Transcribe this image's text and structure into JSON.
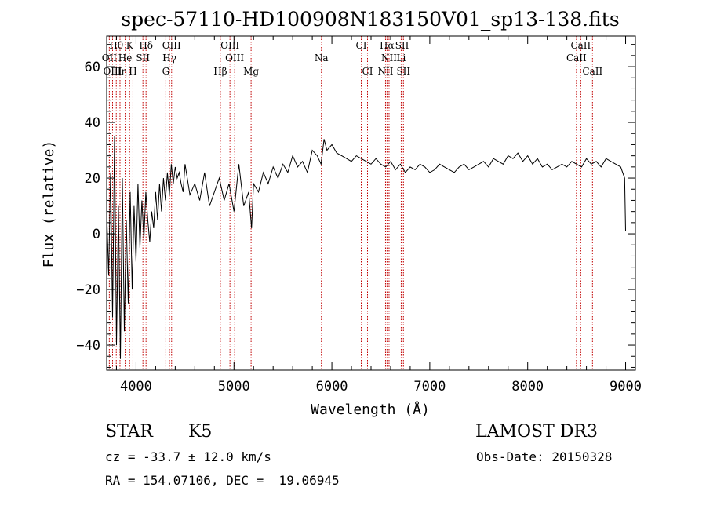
{
  "chart_data": {
    "type": "line",
    "title": "spec-57110-HD100908N183150V01_sp13-138.fits",
    "xlabel": "Wavelength (Å)",
    "ylabel": "Flux (relative)",
    "xlim": [
      3700,
      9100
    ],
    "ylim": [
      -49,
      71
    ],
    "x_ticks": [
      4000,
      5000,
      6000,
      7000,
      8000,
      9000
    ],
    "y_ticks": [
      -40,
      -20,
      0,
      20,
      40,
      60
    ],
    "series": [
      {
        "name": "flux",
        "x": [
          3700,
          3720,
          3740,
          3760,
          3780,
          3800,
          3820,
          3840,
          3860,
          3880,
          3900,
          3920,
          3940,
          3960,
          3980,
          4000,
          4020,
          4040,
          4060,
          4080,
          4100,
          4120,
          4140,
          4160,
          4180,
          4200,
          4220,
          4240,
          4260,
          4280,
          4300,
          4320,
          4340,
          4360,
          4380,
          4400,
          4420,
          4440,
          4460,
          4480,
          4500,
          4550,
          4600,
          4650,
          4700,
          4750,
          4800,
          4850,
          4900,
          4950,
          5000,
          5050,
          5100,
          5150,
          5180,
          5200,
          5250,
          5300,
          5350,
          5400,
          5450,
          5500,
          5550,
          5600,
          5650,
          5700,
          5750,
          5800,
          5850,
          5890,
          5920,
          5950,
          6000,
          6050,
          6100,
          6150,
          6200,
          6250,
          6300,
          6350,
          6400,
          6450,
          6500,
          6550,
          6600,
          6650,
          6700,
          6750,
          6800,
          6850,
          6900,
          6950,
          7000,
          7050,
          7100,
          7150,
          7200,
          7250,
          7300,
          7350,
          7400,
          7450,
          7500,
          7550,
          7600,
          7650,
          7700,
          7750,
          7800,
          7850,
          7900,
          7950,
          8000,
          8050,
          8100,
          8150,
          8200,
          8250,
          8300,
          8350,
          8400,
          8450,
          8500,
          8550,
          8600,
          8650,
          8700,
          8750,
          8800,
          8850,
          8900,
          8950,
          8990,
          9000
        ],
        "values": [
          8,
          -15,
          22,
          -30,
          35,
          -40,
          10,
          -45,
          20,
          -35,
          5,
          -25,
          15,
          -20,
          10,
          -10,
          18,
          -5,
          12,
          -2,
          15,
          5,
          -3,
          8,
          2,
          15,
          5,
          18,
          8,
          20,
          12,
          22,
          14,
          25,
          18,
          24,
          20,
          22,
          18,
          15,
          25,
          14,
          18,
          12,
          22,
          10,
          15,
          20,
          12,
          18,
          8,
          25,
          10,
          15,
          2,
          18,
          15,
          22,
          18,
          24,
          20,
          25,
          22,
          28,
          24,
          26,
          22,
          30,
          28,
          25,
          34,
          30,
          32,
          29,
          28,
          27,
          26,
          28,
          27,
          26,
          25,
          27,
          25,
          24,
          26,
          23,
          25,
          22,
          24,
          23,
          25,
          24,
          22,
          23,
          25,
          24,
          23,
          22,
          24,
          25,
          23,
          24,
          25,
          26,
          24,
          27,
          26,
          25,
          28,
          27,
          29,
          26,
          28,
          25,
          27,
          24,
          25,
          23,
          24,
          25,
          24,
          26,
          25,
          24,
          27,
          25,
          26,
          24,
          27,
          26,
          25,
          24,
          20,
          1
        ]
      }
    ],
    "line_markers": [
      {
        "label": "Hθ",
        "x": 3798,
        "row": 1,
        "align": "center"
      },
      {
        "label": "K",
        "x": 3934,
        "row": 1,
        "align": "center"
      },
      {
        "label": "Hδ",
        "x": 4102,
        "row": 1,
        "align": "center"
      },
      {
        "label": "OIII",
        "x": 4363,
        "row": 1,
        "align": "center"
      },
      {
        "label": "OIII",
        "x": 4959,
        "row": 1,
        "align": "center"
      },
      {
        "label": "CI",
        "x": 6300,
        "row": 1,
        "align": "center"
      },
      {
        "label": "Hα",
        "x": 6563,
        "row": 1,
        "align": "center"
      },
      {
        "label": "SII",
        "x": 6717,
        "row": 1,
        "align": "center"
      },
      {
        "label": "CaII",
        "x": 8542,
        "row": 1,
        "align": "center"
      },
      {
        "label": "OII",
        "x": 3727,
        "row": 2,
        "align": "center"
      },
      {
        "label": "He",
        "x": 3889,
        "row": 2,
        "align": "center"
      },
      {
        "label": "SII",
        "x": 4070,
        "row": 2,
        "align": "center"
      },
      {
        "label": "Hγ",
        "x": 4341,
        "row": 2,
        "align": "center"
      },
      {
        "label": "OIII",
        "x": 5007,
        "row": 2,
        "align": "center"
      },
      {
        "label": "Na",
        "x": 5893,
        "row": 2,
        "align": "center"
      },
      {
        "label": "NII",
        "x": 6584,
        "row": 2,
        "align": "center"
      },
      {
        "label": "Li",
        "x": 6708,
        "row": 2,
        "align": "center"
      },
      {
        "label": "CaII",
        "x": 8498,
        "row": 2,
        "align": "center"
      },
      {
        "label": "OIII",
        "x": 3760,
        "row": 3,
        "align": "center"
      },
      {
        "label": "Hη",
        "x": 3836,
        "row": 3,
        "align": "center"
      },
      {
        "label": "H",
        "x": 3968,
        "row": 3,
        "align": "center"
      },
      {
        "label": "G",
        "x": 4304,
        "row": 3,
        "align": "center"
      },
      {
        "label": "Hβ",
        "x": 4861,
        "row": 3,
        "align": "center"
      },
      {
        "label": "Mg",
        "x": 5175,
        "row": 3,
        "align": "center"
      },
      {
        "label": "CI",
        "x": 6364,
        "row": 3,
        "align": "center"
      },
      {
        "label": "NII",
        "x": 6548,
        "row": 3,
        "align": "center"
      },
      {
        "label": "SII",
        "x": 6731,
        "row": 3,
        "align": "center"
      },
      {
        "label": "CaII",
        "x": 8662,
        "row": 3,
        "align": "center"
      }
    ],
    "marker_line_positions": [
      3727,
      3760,
      3798,
      3836,
      3889,
      3934,
      3968,
      4070,
      4102,
      4304,
      4341,
      4363,
      4861,
      4959,
      5007,
      5175,
      5893,
      6300,
      6364,
      6548,
      6563,
      6584,
      6708,
      6717,
      6731,
      8498,
      8542,
      8662
    ],
    "grid": false
  },
  "info": {
    "object_class": "STAR",
    "subclass": "K5",
    "survey": "LAMOST DR3",
    "redshift": "cz = -33.7 ± 12.0 km/s",
    "obs_date": "Obs-Date: 20150328",
    "coords": "RA = 154.07106, DEC =  19.06945"
  },
  "colors": {
    "axis": "#000000",
    "spectrum": "#000000",
    "marker_line": "#c00000"
  }
}
